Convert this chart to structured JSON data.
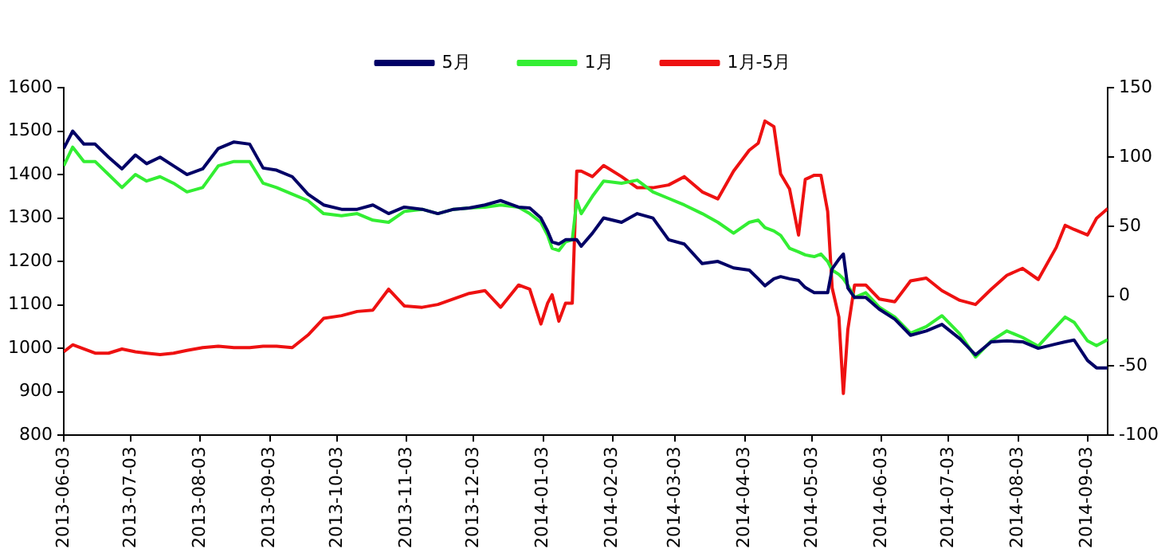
{
  "chart_data": {
    "type": "line",
    "x": [
      "2013-06-03",
      "2013-06-07",
      "2013-06-12",
      "2013-06-17",
      "2013-06-23",
      "2013-06-29",
      "2013-07-05",
      "2013-07-10",
      "2013-07-16",
      "2013-07-22",
      "2013-07-28",
      "2013-08-04",
      "2013-08-11",
      "2013-08-18",
      "2013-08-25",
      "2013-08-31",
      "2013-09-06",
      "2013-09-13",
      "2013-09-20",
      "2013-09-27",
      "2013-10-05",
      "2013-10-12",
      "2013-10-19",
      "2013-10-26",
      "2013-11-02",
      "2013-11-10",
      "2013-11-17",
      "2013-11-24",
      "2013-12-01",
      "2013-12-08",
      "2013-12-15",
      "2013-12-23",
      "2013-12-28",
      "2014-01-02",
      "2014-01-05",
      "2014-01-07",
      "2014-01-10",
      "2014-01-13",
      "2014-01-16",
      "2014-01-18",
      "2014-01-20",
      "2014-01-25",
      "2014-01-30",
      "2014-02-07",
      "2014-02-14",
      "2014-02-21",
      "2014-02-28",
      "2014-03-07",
      "2014-03-15",
      "2014-03-22",
      "2014-03-29",
      "2014-04-05",
      "2014-04-09",
      "2014-04-12",
      "2014-04-16",
      "2014-04-19",
      "2014-04-23",
      "2014-04-27",
      "2014-04-30",
      "2014-05-04",
      "2014-05-07",
      "2014-05-10",
      "2014-05-12",
      "2014-05-15",
      "2014-05-17",
      "2014-05-19",
      "2014-05-22",
      "2014-05-27",
      "2014-06-02",
      "2014-06-09",
      "2014-06-16",
      "2014-06-23",
      "2014-06-30",
      "2014-07-08",
      "2014-07-15",
      "2014-07-22",
      "2014-07-29",
      "2014-08-05",
      "2014-08-12",
      "2014-08-20",
      "2014-08-24",
      "2014-08-28",
      "2014-09-03",
      "2014-09-07",
      "2014-09-12"
    ],
    "series": [
      {
        "name": "5月",
        "color": "#000066",
        "values": [
          1460,
          1500,
          1470,
          1470,
          1440,
          1413,
          1445,
          1425,
          1440,
          1420,
          1400,
          1413,
          1460,
          1475,
          1470,
          1415,
          1410,
          1395,
          1355,
          1330,
          1320,
          1320,
          1330,
          1310,
          1325,
          1320,
          1310,
          1320,
          1323,
          1330,
          1340,
          1325,
          1323,
          1300,
          1270,
          1245,
          1240,
          1250,
          1250,
          1250,
          1235,
          1265,
          1300,
          1290,
          1310,
          1300,
          1250,
          1240,
          1195,
          1200,
          1185,
          1180,
          1160,
          1144,
          1160,
          1165,
          1160,
          1156,
          1140,
          1128,
          1128,
          1128,
          1183,
          1205,
          1217,
          1139,
          1117,
          1117,
          1090,
          1067,
          1030,
          1040,
          1055,
          1022,
          985,
          1015,
          1017,
          1015,
          1000,
          1010,
          1015,
          1019,
          972,
          955,
          955
        ]
      },
      {
        "name": "1月",
        "color": "#33ee33",
        "values": [
          1420,
          1463,
          1430,
          1430,
          1400,
          1370,
          1400,
          1385,
          1395,
          1380,
          1360,
          1370,
          1420,
          1430,
          1430,
          1380,
          1370,
          1355,
          1340,
          1310,
          1305,
          1310,
          1295,
          1290,
          1315,
          1320,
          1310,
          1320,
          1323,
          1325,
          1330,
          1325,
          1310,
          1290,
          1260,
          1230,
          1225,
          1245,
          1250,
          1340,
          1310,
          1350,
          1385,
          1380,
          1387,
          1360,
          1345,
          1330,
          1310,
          1290,
          1265,
          1290,
          1295,
          1278,
          1270,
          1260,
          1230,
          1222,
          1215,
          1211,
          1217,
          1200,
          1180,
          1170,
          1160,
          1145,
          1117,
          1128,
          1095,
          1072,
          1035,
          1050,
          1075,
          1033,
          980,
          1017,
          1040,
          1025,
          1005,
          1050,
          1072,
          1060,
          1017,
          1006,
          1020
        ]
      },
      {
        "name": "1月-5月",
        "color": "#ee1111",
        "axis": "y2",
        "values": [
          -40,
          -35,
          -38,
          -41,
          -41,
          -38,
          -40,
          -41,
          -42,
          -41,
          -39,
          -37,
          -36,
          -37,
          -37,
          -36,
          -36,
          -37,
          -28,
          -16,
          -14,
          -11,
          -10,
          5,
          -7,
          -8,
          -6,
          -2,
          2,
          4,
          -8,
          8,
          5,
          -20,
          -5,
          1,
          -18,
          -5,
          -5,
          90,
          90,
          86,
          94,
          86,
          78,
          78,
          80,
          86,
          75,
          70,
          90,
          105,
          110,
          126,
          122,
          88,
          77,
          44,
          84,
          87,
          87,
          61,
          6,
          -15,
          -70,
          -24,
          8,
          8,
          -2,
          -4,
          11,
          13,
          4,
          -3,
          -6,
          5,
          15,
          20,
          12,
          35,
          51,
          48,
          44,
          56,
          63
        ]
      }
    ],
    "xlim": [
      "2013-06-03",
      "2014-09-12"
    ],
    "xticks": [
      "2013-06-03",
      "2013-07-03",
      "2013-08-03",
      "2013-09-03",
      "2013-10-03",
      "2013-11-03",
      "2013-12-03",
      "2014-01-03",
      "2014-02-03",
      "2014-03-03",
      "2014-04-03",
      "2014-05-03",
      "2014-06-03",
      "2014-07-03",
      "2014-08-03",
      "2014-09-03"
    ],
    "ylim": [
      800,
      1600
    ],
    "yticks": [
      800,
      900,
      1000,
      1100,
      1200,
      1300,
      1400,
      1500,
      1600
    ],
    "y2lim": [
      -100,
      150
    ],
    "y2ticks": [
      -100,
      -50,
      0,
      50,
      100,
      150
    ],
    "legend": "top",
    "grid": false,
    "marker": "none",
    "line_style": "solid"
  }
}
